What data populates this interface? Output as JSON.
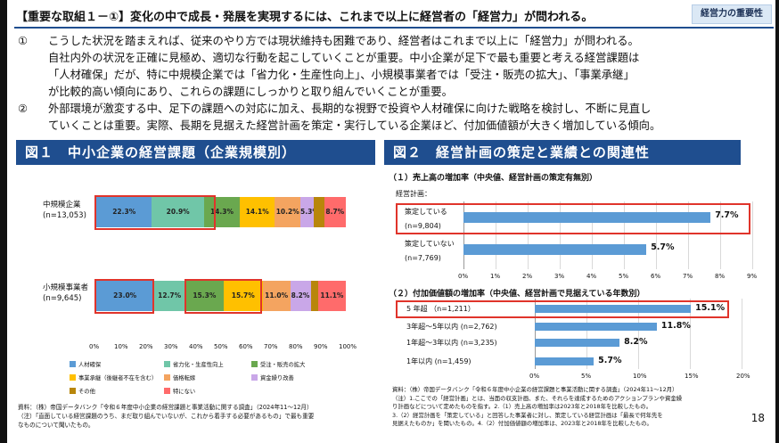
{
  "header": {
    "title": "【重要な取組１－①】変化の中で成長・発展を実現するには、これまで以上に経営者の「経営力」が問われる。",
    "tag": "経営力の重要性"
  },
  "bullets": [
    {
      "num": "①",
      "lines": [
        "こうした状況を踏まえれば、従来のやり方では現状維持も困難であり、経営者はこれまで以上に「経営力」が問われる。",
        "自社内外の状況を正確に見極め、適切な行動を起こしていくことが重要。中小企業が足下で最も重要と考える経営課題は",
        "「人材確保」だが、特に中規模企業では「省力化・生産性向上」、小規模事業者では「受注・販売の拡大」、「事業承継」",
        "が比較的高い傾向にあり、これらの課題にしっかりと取り組んでいくことが重要。"
      ]
    },
    {
      "num": "②",
      "lines": [
        "外部環境が激変する中、足下の課題への対応に加え、長期的な視野で投資や人材確保に向けた戦略を検討し、不断に見直し",
        "ていくことは重要。実際、長期を見据えた経営計画を策定・実行している企業ほど、付加価値額が大きく増加している傾向。"
      ]
    }
  ],
  "fig1": {
    "title": "図１　中小企業の経営課題（企業規模別）",
    "rows": [
      {
        "name": "中規模企業",
        "n": "(n=13,053)",
        "values": [
          22.3,
          20.9,
          14.3,
          14.1,
          10.2,
          5.3,
          4.2,
          8.7
        ],
        "labels": [
          "22.3%",
          "20.9%",
          "14.3%",
          "14.1%",
          "10.2%",
          "5.3%",
          "",
          "8.7%"
        ]
      },
      {
        "name": "小規模事業者",
        "n": "(n=9,645)",
        "values": [
          23.0,
          12.7,
          15.3,
          15.7,
          11.0,
          8.2,
          3.0,
          11.1
        ],
        "labels": [
          "23.0%",
          "12.7%",
          "15.3%",
          "15.7%",
          "11.0%",
          "8.2%",
          "",
          "11.1%"
        ]
      }
    ],
    "ticks": [
      "0%",
      "10%",
      "20%",
      "30%",
      "40%",
      "50%",
      "60%",
      "70%",
      "80%",
      "90%",
      "100%"
    ],
    "legend": [
      "人材確保",
      "省力化・生産性向上",
      "受注・販売の拡大",
      "事業承継（後継者不在を含む）",
      "価格転嫁",
      "資金繰り改善",
      "その他",
      "特にない"
    ],
    "colors": [
      "#5b9bd5",
      "#70c6a8",
      "#6aa84f",
      "#ffc000",
      "#f4a460",
      "#c9a7e8",
      "#b8860b",
      "#ff6b6b"
    ],
    "note_lines": [
      "資料：（株）帝国データバンク「令和６年度中小企業の経営課題と事業活動に関する調査」（2024年11～12月）",
      "（注）「直面している経営課題のうち、まだ取り組んでいないが、これから着手する必要があるもの」で最も重要",
      "なものについて聞いたもの。"
    ]
  },
  "fig2": {
    "title": "図２　経営計画の策定と業績との関連性",
    "sub1": "（１）売上高の増加率（中央値、経営計画の策定有無別）",
    "sub1_axis": "経営計画：",
    "chart1": {
      "categories": [
        [
          "策定している",
          "(n=9,804)"
        ],
        [
          "策定していない",
          "(n=7,769)"
        ]
      ],
      "values": [
        7.7,
        5.7
      ],
      "labels": [
        "7.7%",
        "5.7%"
      ],
      "ticks": [
        "0%",
        "1%",
        "2%",
        "3%",
        "4%",
        "5%",
        "6%",
        "7%",
        "8%",
        "9%"
      ],
      "xmax": 9
    },
    "sub2": "（２）付加価値額の増加率（中央値、経営計画で見据えている年数別）",
    "chart2": {
      "categories": [
        "5 年超 （n=1,211）",
        "3年超～5年以内 (n=2,762)",
        "1年超～3年以内 (n=3,235)",
        "1年以内 (n=1,459)"
      ],
      "values": [
        15.1,
        11.8,
        8.2,
        5.7
      ],
      "labels": [
        "15.1%",
        "11.8%",
        "8.2%",
        "5.7%"
      ],
      "ticks": [
        "0%",
        "5%",
        "10%",
        "15%",
        "20%"
      ],
      "xmax": 20
    },
    "note_lines": [
      "資料：（株）帝国データバンク「令和６年度中小企業の経営課題と事業活動に関する調査」（2024年11～12月）",
      "（注）1.ここでの「経営計画」とは、当面の収支計画、また、それらを達成するためのアクションプランや資金繰",
      "り計画などについて定めたものを指す。2.（1）売上高の増加率は2023年と2018年を比較したもの。",
      "3.（2）経営計画を「策定している」と回答した事業者に対し、策定している経営計画は「最長で何年先を",
      "見据えたものか」を聞いたもの。4.（2）付加価値額の増加率は、2023年と2018年を比較したもの。"
    ]
  },
  "page": "18",
  "colors": {
    "header_rule": "#1f4e8f",
    "fig_title_bg": "#1f4e8f",
    "bar": "#5b9bd5",
    "highlight": "#e0342b"
  }
}
